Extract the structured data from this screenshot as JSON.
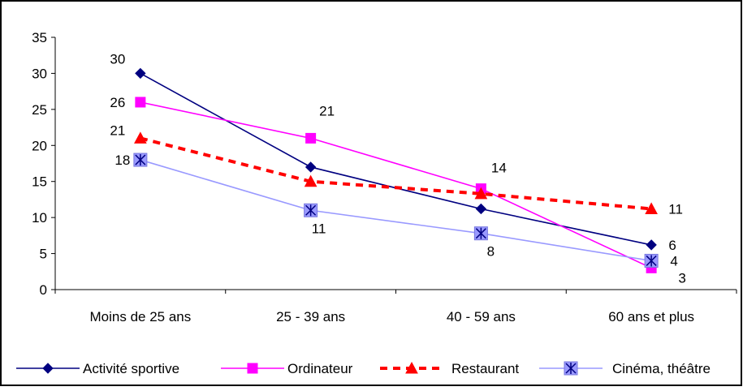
{
  "chart_data": {
    "type": "line",
    "categories": [
      "Moins de 25 ans",
      "25 - 39 ans",
      "40 - 59 ans",
      "60 ans et plus"
    ],
    "ylim": [
      0,
      35
    ],
    "yticks": [
      0,
      5,
      10,
      15,
      20,
      25,
      30,
      35
    ],
    "grid": false,
    "legend_position": "bottom",
    "series": [
      {
        "name": "Activité sportive",
        "values": [
          30,
          17,
          11.2,
          6.2
        ],
        "color": "#000080",
        "marker": "diamond",
        "dash": "solid",
        "labels": [
          "30",
          "",
          "",
          "6"
        ]
      },
      {
        "name": "Ordinateur",
        "values": [
          26,
          21,
          14,
          3
        ],
        "color": "#FF00FF",
        "marker": "square",
        "dash": "solid",
        "labels": [
          "26",
          "21",
          "14",
          "3"
        ]
      },
      {
        "name": "Restaurant",
        "values": [
          21,
          15,
          13.3,
          11.2
        ],
        "color": "#FF0000",
        "marker": "triangle",
        "dash": "dashed",
        "labels": [
          "21",
          "",
          "",
          "11"
        ]
      },
      {
        "name": "Cinéma, théâtre",
        "values": [
          18,
          11,
          7.8,
          4
        ],
        "color": "#9999FF",
        "marker": "star-square",
        "dash": "solid",
        "labels": [
          "18",
          "11",
          "8",
          "4"
        ]
      }
    ]
  }
}
